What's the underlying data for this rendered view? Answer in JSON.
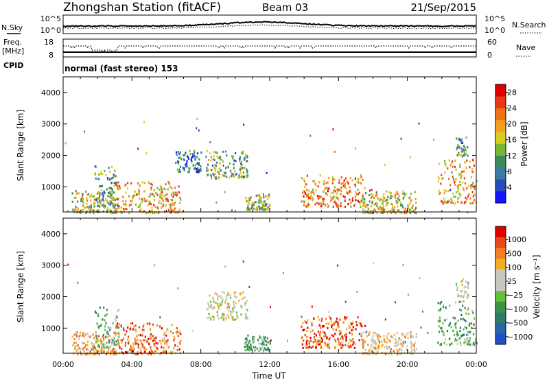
{
  "header": {
    "station": "Zhongshan Station (fitACF)",
    "beam": "Beam 03",
    "date": "21/Sep/2015"
  },
  "strip": {
    "nsky_label": "N.Sky",
    "nsearch_label": "N.Search",
    "noise_ticks": [
      "10^5",
      "10^0"
    ],
    "freq_label": "Freq.",
    "freq_unit": "[MHz]",
    "freq_ticks": [
      "18",
      "8"
    ],
    "nave_label": "Nave",
    "nave_ticks": [
      "60",
      "0"
    ],
    "cpid_label": "CPID",
    "cpid_text": "normal (fast stereo) 153"
  },
  "chart_data": [
    {
      "type": "heatmap",
      "name": "power",
      "ylabel": "Slant Range [km]",
      "xlabel": "",
      "x_ticks": [
        "00:00",
        "04:00",
        "08:00",
        "12:00",
        "16:00",
        "20:00",
        "00:00"
      ],
      "xlim_hours": [
        0,
        24
      ],
      "ylim": [
        200,
        4500
      ],
      "y_ticks": [
        1000,
        2000,
        3000,
        4000
      ],
      "colorbar": {
        "label": "Power [dB]",
        "ticks": [
          "4",
          "8",
          "12",
          "16",
          "20",
          "24",
          "28"
        ],
        "colors": [
          "#1414ff",
          "#2a4ab8",
          "#3c7aa0",
          "#3a8a5a",
          "#78b838",
          "#d8cc20",
          "#f0a020",
          "#f07018",
          "#e83818",
          "#e00000"
        ],
        "range": [
          0,
          30
        ]
      },
      "clusters": [
        {
          "t": [
            0.5,
            3.0
          ],
          "r": [
            200,
            900
          ],
          "level": 0.45
        },
        {
          "t": [
            1.8,
            3.2
          ],
          "r": [
            400,
            1700
          ],
          "level": 0.3
        },
        {
          "t": [
            3.0,
            6.8
          ],
          "r": [
            200,
            1200
          ],
          "level": 0.6
        },
        {
          "t": [
            8.3,
            10.7
          ],
          "r": [
            1300,
            2200
          ],
          "level": 0.35
        },
        {
          "t": [
            6.5,
            8.0
          ],
          "r": [
            1500,
            2200
          ],
          "level": 0.2
        },
        {
          "t": [
            10.5,
            12.0
          ],
          "r": [
            300,
            800
          ],
          "level": 0.4
        },
        {
          "t": [
            13.8,
            17.5
          ],
          "r": [
            400,
            1400
          ],
          "level": 0.65
        },
        {
          "t": [
            17.3,
            20.5
          ],
          "r": [
            200,
            900
          ],
          "level": 0.5
        },
        {
          "t": [
            21.7,
            24.0
          ],
          "r": [
            500,
            1900
          ],
          "level": 0.6
        },
        {
          "t": [
            22.8,
            23.5
          ],
          "r": [
            2000,
            2600
          ],
          "level": 0.3
        }
      ]
    },
    {
      "type": "heatmap",
      "name": "velocity",
      "ylabel": "Slant Range [km]",
      "xlabel": "Time UT",
      "x_ticks": [
        "00:00",
        "04:00",
        "08:00",
        "12:00",
        "16:00",
        "20:00",
        "00:00"
      ],
      "xlim_hours": [
        0,
        24
      ],
      "ylim": [
        200,
        4500
      ],
      "y_ticks": [
        1000,
        2000,
        3000,
        4000
      ],
      "colorbar": {
        "label": "Velocity [m s⁻¹]",
        "ticks": [
          "1000",
          "500",
          "100",
          "25",
          "−25",
          "−100",
          "−500",
          "−1000"
        ],
        "colors": [
          "#2050c8",
          "#2c64a8",
          "#2c7c6a",
          "#3c9048",
          "#64c038",
          "#c8c8c0",
          "#c8c8c0",
          "#f0b020",
          "#f08020",
          "#e84818",
          "#e00000"
        ],
        "range": [
          -1000,
          1000
        ]
      },
      "clusters": [
        {
          "t": [
            0.5,
            3.0
          ],
          "r": [
            200,
            900
          ],
          "level": 0.65
        },
        {
          "t": [
            1.8,
            3.2
          ],
          "r": [
            400,
            1700
          ],
          "level": 0.3
        },
        {
          "t": [
            3.0,
            6.8
          ],
          "r": [
            200,
            1200
          ],
          "level": 0.75
        },
        {
          "t": [
            8.3,
            10.7
          ],
          "r": [
            1300,
            2200
          ],
          "level": 0.5
        },
        {
          "t": [
            10.5,
            12.0
          ],
          "r": [
            300,
            800
          ],
          "level": 0.3
        },
        {
          "t": [
            13.8,
            17.5
          ],
          "r": [
            400,
            1400
          ],
          "level": 0.8
        },
        {
          "t": [
            17.3,
            20.5
          ],
          "r": [
            200,
            900
          ],
          "level": 0.6
        },
        {
          "t": [
            21.7,
            24.0
          ],
          "r": [
            500,
            1900
          ],
          "level": 0.3
        },
        {
          "t": [
            22.8,
            23.5
          ],
          "r": [
            2000,
            2600
          ],
          "level": 0.5
        }
      ]
    }
  ]
}
